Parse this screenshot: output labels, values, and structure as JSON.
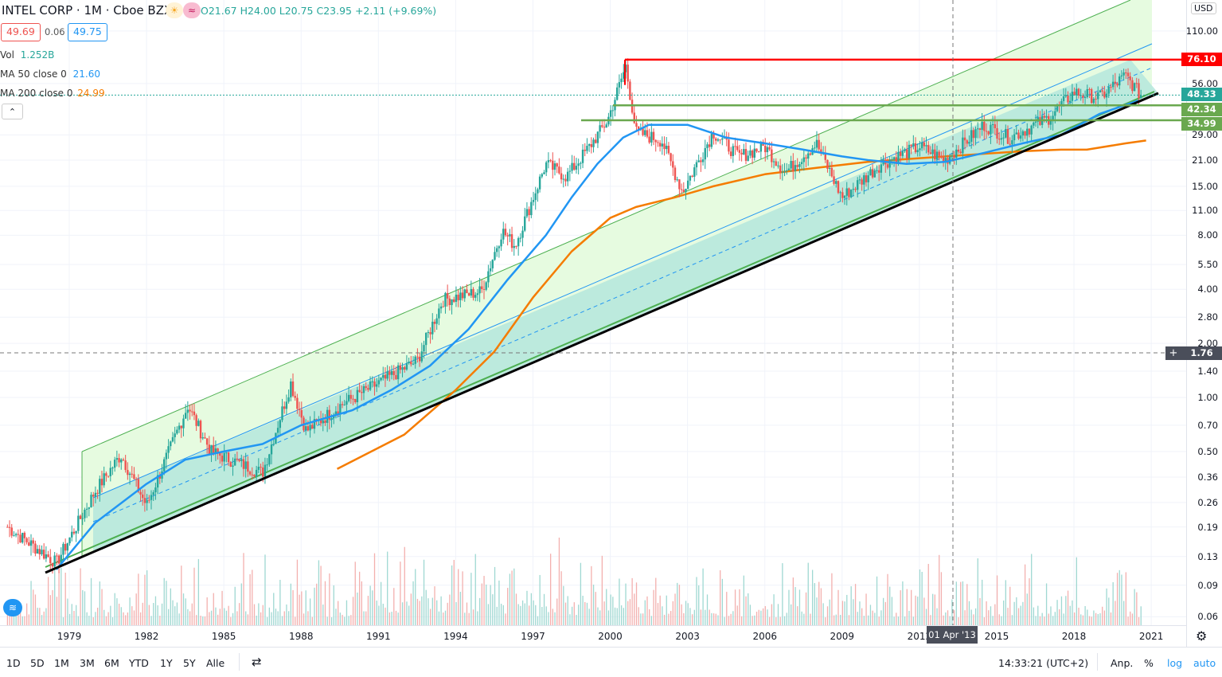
{
  "header": {
    "symbol": "INTEL CORP · 1M · Cboe BZX",
    "ohlc": "O21.67 H24.00 L20.75 C23.95 +2.11 (+9.69%)",
    "bid": "49.69",
    "spread": "0.06",
    "ask": "49.75",
    "currency": "USD"
  },
  "indicators": {
    "vol_label": "Vol",
    "vol_value": "1.252B",
    "ma50_label": "MA 50 close 0",
    "ma50_value": "21.60",
    "ma200_label": "MA 200 close 0",
    "ma200_value": "24.99"
  },
  "price_axis": [
    "110.00",
    "56.00",
    "29.00",
    "21.00",
    "15.00",
    "11.00",
    "8.00",
    "5.50",
    "4.00",
    "2.80",
    "2.00",
    "1.40",
    "1.00",
    "0.70",
    "0.50",
    "0.36",
    "0.26",
    "0.19",
    "0.13",
    "0.09",
    "0.06"
  ],
  "price_tags": {
    "resistance": "76.10",
    "last": "48.33",
    "support1": "42.34",
    "support2": "34.99",
    "crosshair": "1.76"
  },
  "time_axis": [
    "1979",
    "1982",
    "1985",
    "1988",
    "1991",
    "1994",
    "1997",
    "2000",
    "2003",
    "2006",
    "2009",
    "2012",
    "2015",
    "2018",
    "2021"
  ],
  "crosshair_date": "01 Apr '13",
  "bottom_bar": {
    "ranges": [
      "1D",
      "5D",
      "1M",
      "3M",
      "6M",
      "YTD",
      "1Y",
      "5Y",
      "Alle"
    ],
    "clock": "14:33:21 (UTC+2)",
    "adj": "Anp.",
    "percent": "%",
    "log": "log",
    "auto": "auto"
  },
  "colors": {
    "up": "#26a69a",
    "down": "#ef5350",
    "ma50": "#2196f3",
    "ma200": "#f57c00",
    "resistance": "#ff0000",
    "support": "#6aa84f"
  },
  "chart_data": {
    "type": "candlestick",
    "scale": "log",
    "timeframe": "1M",
    "price_keypoints": [
      [
        1976.6,
        0.19
      ],
      [
        1978.5,
        0.12
      ],
      [
        1980,
        0.3
      ],
      [
        1981,
        0.48
      ],
      [
        1982,
        0.25
      ],
      [
        1983.6,
        0.9
      ],
      [
        1984.5,
        0.5
      ],
      [
        1986.5,
        0.38
      ],
      [
        1987.6,
        1.2
      ],
      [
        1988.2,
        0.65
      ],
      [
        1989.5,
        0.9
      ],
      [
        1991,
        1.2
      ],
      [
        1992.5,
        1.6
      ],
      [
        1993.5,
        3.5
      ],
      [
        1995,
        3.9
      ],
      [
        1995.8,
        8.5
      ],
      [
        1996.3,
        7
      ],
      [
        1997.5,
        20
      ],
      [
        1998.3,
        17
      ],
      [
        1999.2,
        25
      ],
      [
        1999.9,
        35
      ],
      [
        2000.6,
        70
      ],
      [
        2001,
        30
      ],
      [
        2002,
        27
      ],
      [
        2002.8,
        14
      ],
      [
        2004,
        30
      ],
      [
        2005,
        22
      ],
      [
        2006,
        25
      ],
      [
        2006.8,
        18
      ],
      [
        2008,
        26
      ],
      [
        2009,
        13
      ],
      [
        2010.5,
        20
      ],
      [
        2012,
        25
      ],
      [
        2013,
        21
      ],
      [
        2014.5,
        33
      ],
      [
        2015.5,
        28
      ],
      [
        2017,
        36
      ],
      [
        2018,
        50
      ],
      [
        2019,
        47
      ],
      [
        2020,
        62
      ],
      [
        2020.6,
        48.3
      ]
    ],
    "ma50": [
      [
        1978.5,
        0.11
      ],
      [
        1980,
        0.2
      ],
      [
        1982,
        0.33
      ],
      [
        1983.5,
        0.45
      ],
      [
        1985,
        0.5
      ],
      [
        1986.5,
        0.55
      ],
      [
        1988,
        0.7
      ],
      [
        1990,
        0.85
      ],
      [
        1991.5,
        1.1
      ],
      [
        1993,
        1.5
      ],
      [
        1994.5,
        2.4
      ],
      [
        1996,
        4.5
      ],
      [
        1997.5,
        8
      ],
      [
        1998.5,
        13
      ],
      [
        1999.5,
        20
      ],
      [
        2000.5,
        28
      ],
      [
        2001.5,
        33
      ],
      [
        2003,
        33
      ],
      [
        2004.5,
        28
      ],
      [
        2006,
        26
      ],
      [
        2007.5,
        24
      ],
      [
        2009,
        22
      ],
      [
        2010,
        21
      ],
      [
        2011.5,
        20
      ],
      [
        2013,
        20.5
      ],
      [
        2014.5,
        23
      ],
      [
        2016,
        26
      ],
      [
        2017.5,
        29
      ],
      [
        2019,
        38
      ],
      [
        2020.5,
        45
      ]
    ],
    "ma200": [
      [
        1989.4,
        0.4
      ],
      [
        1992,
        0.62
      ],
      [
        1994,
        1.1
      ],
      [
        1995.5,
        1.8
      ],
      [
        1997,
        3.6
      ],
      [
        1998.5,
        6.5
      ],
      [
        2000,
        10
      ],
      [
        2001,
        11.5
      ],
      [
        2002.5,
        13
      ],
      [
        2004,
        15
      ],
      [
        2006,
        17.5
      ],
      [
        2008,
        19
      ],
      [
        2010,
        20.5
      ],
      [
        2012,
        21.5
      ],
      [
        2014,
        22.5
      ],
      [
        2016,
        23.5
      ],
      [
        2017.5,
        24
      ],
      [
        2018.5,
        24
      ],
      [
        2020,
        26
      ],
      [
        2020.8,
        27
      ]
    ],
    "hlines": [
      76.1,
      42.34,
      34.99
    ]
  }
}
